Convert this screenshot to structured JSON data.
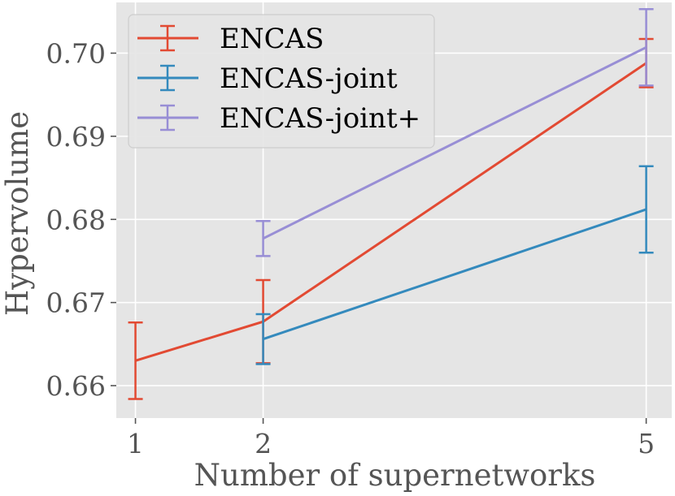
{
  "chart_data": {
    "type": "line",
    "xlabel": "Number of supernetworks",
    "ylabel": "Hypervolume",
    "xlim": [
      0.85,
      5.2
    ],
    "ylim": [
      0.6561,
      0.7061
    ],
    "xticks": [
      1,
      2,
      5
    ],
    "xtick_labels": [
      "1",
      "2",
      "5"
    ],
    "yticks": [
      0.66,
      0.67,
      0.68,
      0.69,
      0.7
    ],
    "ytick_labels": [
      "0.66",
      "0.67",
      "0.68",
      "0.69",
      "0.70"
    ],
    "grid": true,
    "legend_position": "top-left",
    "series": [
      {
        "name": "ENCAS",
        "color": "#e24a33",
        "points": [
          {
            "x": 1,
            "y": 0.663,
            "err": 0.0046
          },
          {
            "x": 2,
            "y": 0.6677,
            "err": 0.005
          },
          {
            "x": 5,
            "y": 0.6988,
            "err": 0.0029
          }
        ]
      },
      {
        "name": "ENCAS-joint",
        "color": "#348abd",
        "points": [
          {
            "x": 2,
            "y": 0.6656,
            "err": 0.003
          },
          {
            "x": 5,
            "y": 0.6812,
            "err": 0.0052
          }
        ]
      },
      {
        "name": "ENCAS-joint+",
        "color": "#988ed5",
        "points": [
          {
            "x": 2,
            "y": 0.6777,
            "err": 0.0021
          },
          {
            "x": 5,
            "y": 0.7007,
            "err": 0.0046
          }
        ]
      }
    ]
  }
}
